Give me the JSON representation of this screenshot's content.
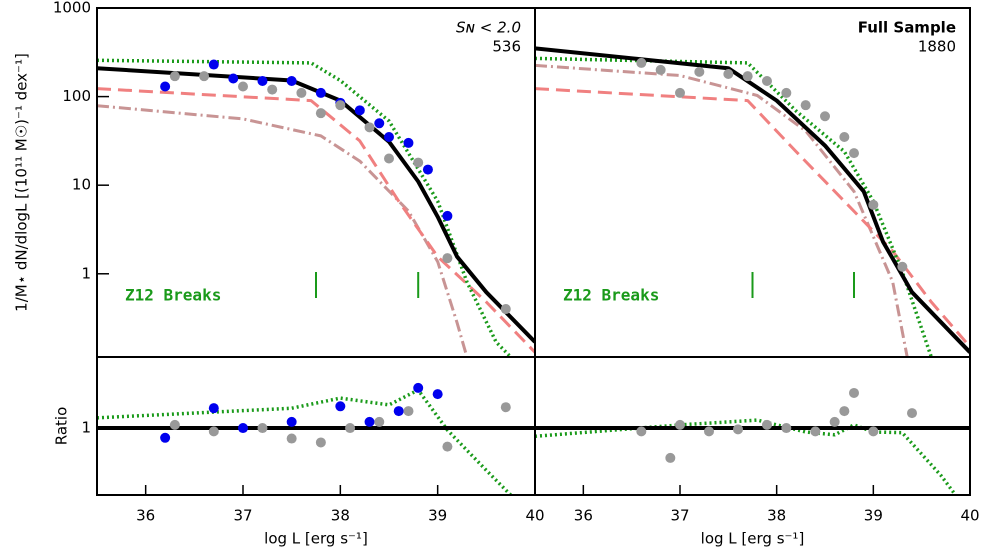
{
  "chart_data": [
    {
      "type": "line",
      "ylog": true,
      "xlim": [
        35.5,
        40
      ],
      "ylim": [
        0.115,
        1000
      ],
      "yticks": [
        1,
        10,
        100,
        1000
      ],
      "ylabel": "1/M⋆ dN/dlogL [(10¹¹ M☉)⁻¹ dex⁻¹]",
      "annotations": [
        "Sɴ < 2.0",
        "536"
      ],
      "note": "Z12 Breaks",
      "breaks": [
        37.75,
        38.8
      ],
      "breaks_color": "#1a9a1a",
      "series": [
        {
          "style": "dashdot",
          "color": "#c89494",
          "x": [
            35.5,
            37,
            37.8,
            38.2,
            38.7,
            39,
            39.2,
            39.3
          ],
          "values": [
            79,
            56,
            36,
            18.7,
            5.1,
            1.37,
            0.28,
            0.115
          ]
        },
        {
          "style": "dashed",
          "color": "#f08080",
          "x": [
            35.5,
            37.7,
            38.2,
            38.6,
            39,
            39.5,
            40
          ],
          "values": [
            123,
            90,
            31.6,
            6.6,
            1.56,
            0.48,
            0.13
          ]
        },
        {
          "style": "dotted",
          "color": "#1a9a1a",
          "x": [
            35.5,
            37.7,
            38,
            38.5,
            39,
            39.3,
            39.6,
            39.75
          ],
          "values": [
            257,
            240,
            152,
            53,
            6.6,
            0.81,
            0.17,
            0.115
          ]
        },
        {
          "style": "solid",
          "color": "#000000",
          "x": [
            35.5,
            37.5,
            38,
            38.5,
            38.8,
            39,
            39.2,
            39.5,
            40
          ],
          "values": [
            209,
            152,
            90,
            31,
            11,
            4.4,
            1.56,
            0.62,
            0.17
          ]
        },
        {
          "style": "points",
          "color": "#0000ee",
          "x": [
            36.2,
            36.7,
            36.9,
            37.2,
            37.5,
            37.8,
            38,
            38.2,
            38.4,
            38.5,
            38.7,
            38.9,
            39.1
          ],
          "values": [
            130,
            230,
            160,
            150,
            150,
            110,
            85,
            70,
            50,
            35,
            30,
            15,
            4.5
          ]
        },
        {
          "style": "points",
          "color": "#999999",
          "x": [
            36.3,
            36.6,
            37,
            37.3,
            37.6,
            37.8,
            38,
            38.3,
            38.5,
            38.8,
            39.1,
            39.7
          ],
          "values": [
            170,
            170,
            130,
            120,
            110,
            65,
            80,
            45,
            20,
            18,
            1.5,
            0.4
          ]
        }
      ]
    },
    {
      "type": "line",
      "ylog": true,
      "xlim": [
        35.5,
        40
      ],
      "ylim": [
        0.115,
        1000
      ],
      "annotations": [
        "Full Sample",
        "1880"
      ],
      "note": "Z12 Breaks",
      "breaks": [
        37.75,
        38.8
      ],
      "breaks_color": "#1a9a1a",
      "series": [
        {
          "style": "dashdot",
          "color": "#c89494",
          "x": [
            35.5,
            37,
            37.8,
            38.3,
            38.8,
            39.2,
            39.35
          ],
          "values": [
            225,
            173,
            103,
            41,
            8.5,
            0.81,
            0.115
          ]
        },
        {
          "style": "dashed",
          "color": "#f08080",
          "x": [
            35.5,
            37.7,
            38.2,
            38.7,
            39.2,
            39.6,
            40
          ],
          "values": [
            123,
            90,
            24,
            6.6,
            1.8,
            0.48,
            0.15
          ]
        },
        {
          "style": "dotted",
          "color": "#1a9a1a",
          "x": [
            35.5,
            37.7,
            38.2,
            38.7,
            39,
            39.3,
            39.6
          ],
          "values": [
            270,
            240,
            69,
            24,
            6.6,
            1.05,
            0.115
          ]
        },
        {
          "style": "solid",
          "color": "#000000",
          "x": [
            35.5,
            37.5,
            38,
            38.5,
            38.9,
            39.1,
            39.4,
            40
          ],
          "values": [
            350,
            209,
            90,
            28,
            8.5,
            2.3,
            0.62,
            0.13
          ]
        },
        {
          "style": "points",
          "color": "#999999",
          "x": [
            36.6,
            36.8,
            37,
            37.2,
            37.5,
            37.7,
            37.9,
            38.1,
            38.3,
            38.5,
            38.7,
            38.8,
            39,
            39.3
          ],
          "values": [
            240,
            200,
            110,
            190,
            180,
            170,
            150,
            110,
            80,
            60,
            35,
            23,
            6,
            1.2
          ]
        }
      ]
    },
    {
      "type": "line",
      "ylog": true,
      "xlim": [
        35.5,
        40
      ],
      "ylim": [
        0.355,
        3
      ],
      "yticks": [
        1
      ],
      "xticks": [
        36,
        37,
        38,
        39,
        40
      ],
      "ylabel": "Ratio",
      "xlabel": "log L [erg s⁻¹]",
      "series": [
        {
          "style": "dotted",
          "color": "#1a9a1a",
          "x": [
            35.5,
            37.5,
            38,
            38.5,
            38.8,
            39.1,
            39.5,
            39.75
          ],
          "values": [
            1.17,
            1.36,
            1.59,
            1.43,
            1.8,
            0.97,
            0.52,
            0.355
          ]
        },
        {
          "style": "solid",
          "color": "#000000",
          "x": [
            35.5,
            40
          ],
          "values": [
            1,
            1
          ]
        },
        {
          "style": "points",
          "color": "#0000ee",
          "x": [
            36.2,
            36.7,
            37,
            37.5,
            38,
            38.3,
            38.6,
            38.8,
            39
          ],
          "values": [
            0.86,
            1.36,
            1.0,
            1.1,
            1.4,
            1.1,
            1.3,
            1.86,
            1.69
          ]
        },
        {
          "style": "points",
          "color": "#999999",
          "x": [
            36.3,
            36.7,
            37.2,
            37.5,
            37.8,
            38.1,
            38.4,
            38.7,
            39.1,
            39.7
          ],
          "values": [
            1.05,
            0.95,
            1.0,
            0.85,
            0.8,
            1.0,
            1.1,
            1.3,
            0.75,
            1.38
          ]
        }
      ]
    },
    {
      "type": "line",
      "ylog": true,
      "xlim": [
        35.5,
        40
      ],
      "ylim": [
        0.355,
        3
      ],
      "xticks": [
        36,
        37,
        38,
        39,
        40
      ],
      "xlabel": "log L [erg s⁻¹]",
      "series": [
        {
          "style": "dotted",
          "color": "#1a9a1a",
          "x": [
            35.5,
            37,
            37.8,
            38.3,
            38.6,
            38.8,
            39,
            39.3,
            39.7,
            39.85
          ],
          "values": [
            0.88,
            1.05,
            1.13,
            0.94,
            0.9,
            1.05,
            0.94,
            0.93,
            0.48,
            0.355
          ]
        },
        {
          "style": "solid",
          "color": "#000000",
          "x": [
            35.5,
            40
          ],
          "values": [
            1,
            1
          ]
        },
        {
          "style": "points",
          "color": "#999999",
          "x": [
            36.6,
            36.9,
            37,
            37.3,
            37.6,
            37.9,
            38.1,
            38.4,
            38.6,
            38.7,
            38.8,
            39,
            39.4
          ],
          "values": [
            0.95,
            0.63,
            1.05,
            0.95,
            0.98,
            1.05,
            1.0,
            0.95,
            1.1,
            1.3,
            1.72,
            0.95,
            1.26
          ]
        }
      ]
    }
  ]
}
